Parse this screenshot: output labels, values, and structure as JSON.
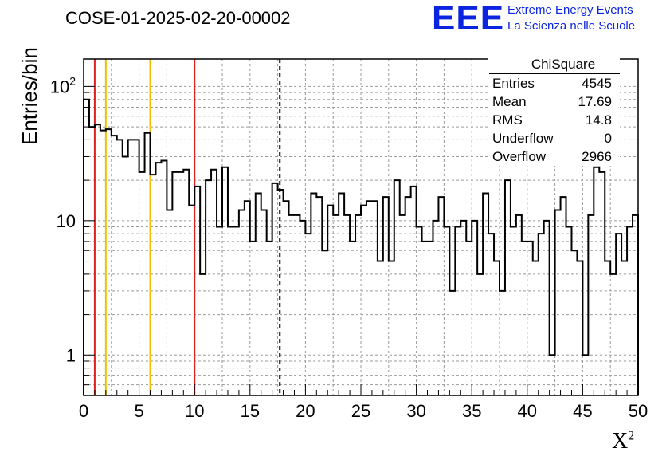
{
  "header": {
    "title": "COSE-01-2025-02-20-00002",
    "logo_text": "EEE",
    "logo_line1": "Extreme Energy Events",
    "logo_line2": "La Scienza nelle Scuole"
  },
  "stats": {
    "title": "ChiSquare",
    "rows": [
      {
        "label": "Entries",
        "value": "4545"
      },
      {
        "label": "Mean",
        "value": "17.69"
      },
      {
        "label": "RMS",
        "value": "14.8"
      },
      {
        "label": "Underflow",
        "value": "0"
      },
      {
        "label": "Overflow",
        "value": "2966"
      }
    ]
  },
  "colors": {
    "red_line": "#e02020",
    "yellow_line": "#f0c000",
    "histogram": "#000000",
    "grid": "#9a9a9a",
    "logo": "#0b24e0"
  },
  "chart_data": {
    "type": "histogram",
    "ylabel": "Entries/bin",
    "xlabel": "X",
    "xlabel_sup": "2",
    "y_scale": "log",
    "xlim": [
      0,
      50
    ],
    "ylim": [
      0.5,
      160
    ],
    "x_ticks": [
      "0",
      "5",
      "10",
      "15",
      "20",
      "25",
      "30",
      "35",
      "40",
      "45",
      "50"
    ],
    "y_ticks": [
      {
        "value": 1,
        "label": "1"
      },
      {
        "value": 10,
        "label": "10"
      },
      {
        "value": 100,
        "label": "10",
        "sup": "2"
      }
    ],
    "bin_width": 0.5,
    "values": [
      80,
      50,
      52,
      47,
      48,
      43,
      40,
      30,
      40,
      40,
      23,
      45,
      22,
      27,
      28,
      12,
      23,
      23,
      24,
      13,
      18,
      4,
      20,
      24,
      9,
      25,
      9,
      9,
      12,
      14,
      7,
      16,
      12,
      7,
      19,
      17,
      14,
      11,
      11,
      10,
      8,
      16,
      15,
      6,
      13,
      11,
      16,
      11,
      7,
      11,
      13,
      14,
      14,
      5,
      15,
      5,
      20,
      11,
      15,
      18,
      9,
      7,
      7,
      10,
      15,
      9,
      3,
      9,
      10,
      7,
      10,
      4,
      16,
      8,
      5,
      3,
      20,
      9,
      11,
      7,
      7,
      5,
      8,
      10,
      1,
      12,
      15,
      9,
      6,
      5,
      1,
      11,
      25,
      23,
      5,
      4,
      8,
      5,
      9,
      11
    ],
    "reference_lines": [
      {
        "x": 1,
        "color": "red"
      },
      {
        "x": 2,
        "color": "yellow"
      },
      {
        "x": 6,
        "color": "yellow"
      },
      {
        "x": 10,
        "color": "red"
      }
    ],
    "mean_line": 17.69,
    "grid": true,
    "stats_box_position": "top-right"
  }
}
